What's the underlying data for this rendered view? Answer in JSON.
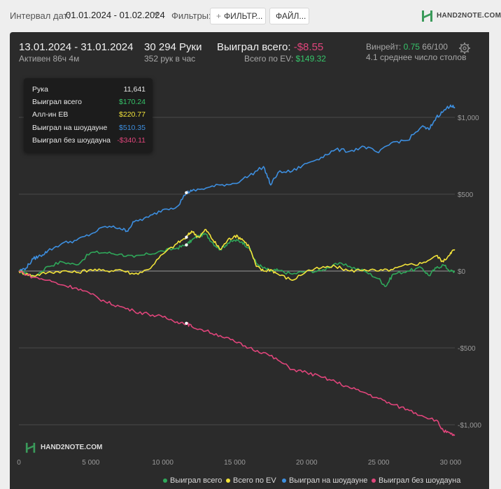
{
  "toolbar": {
    "interval_label": "Интервал дат:",
    "interval_value": "01.01.2024 - 01.02.2024",
    "filters_label": "Фильтры:",
    "filter_button": "ФИЛЬТР...",
    "file_button": "ФАЙЛ...",
    "logo": "HAND2NOTE.COM"
  },
  "summary": {
    "date_range": "13.01.2024 - 31.01.2024",
    "active": "Активен 86ч 4м",
    "hands": "30 294 Руки",
    "hands_per_hour": "352 рук в час",
    "won_label": "Выиграл всего:",
    "won_value": "-$8.55",
    "ev_label": "Всего по EV:",
    "ev_value": "$149.32",
    "winrate_label": "Винрейт:",
    "winrate_value": "0.75",
    "winrate_tail": "66/100",
    "tables": "4.1 среднее число столов"
  },
  "tooltip": {
    "rows": [
      {
        "label": "Рука",
        "value": "11,641",
        "color": "#e8e8e8"
      },
      {
        "label": "Выиграл всего",
        "value": "$170.24",
        "color": "#36c46a"
      },
      {
        "label": "Алл-ин ЕВ",
        "value": "$220.77",
        "color": "#f2e33a"
      },
      {
        "label": "Выиграл на шоудауне",
        "value": "$510.35",
        "color": "#3d8fe0"
      },
      {
        "label": "Выиграл без шоудауна",
        "value": "-$340.11",
        "color": "#e0457b"
      }
    ]
  },
  "watermark": "HAND2NOTE.COM",
  "chart_data": {
    "type": "line",
    "xlim": [
      0,
      30294
    ],
    "ylim": [
      -1100,
      1200
    ],
    "x_ticks": [
      0,
      5000,
      10000,
      15000,
      20000,
      25000,
      30000
    ],
    "x_tick_labels": [
      "0",
      "5 000",
      "10 000",
      "15 000",
      "20 000",
      "25 000",
      "30 000"
    ],
    "y_ticks": [
      1000,
      500,
      0,
      -500,
      -1000
    ],
    "y_tick_labels": [
      "$1,000",
      "$500",
      "$0",
      "-$500",
      "-$1,000"
    ],
    "grid": true,
    "legend_position": "bottom",
    "marker_x": 11641,
    "series": [
      {
        "name": "Выиграл всего",
        "color": "#2fa85a",
        "x": [
          0,
          500,
          1000,
          2000,
          3000,
          4000,
          5000,
          6000,
          7000,
          8000,
          9000,
          10000,
          11000,
          11641,
          12000,
          12500,
          13000,
          13500,
          14000,
          14500,
          15000,
          15500,
          16000,
          16500,
          17000,
          17500,
          18000,
          19000,
          20000,
          21000,
          22000,
          23000,
          24000,
          25000,
          25500,
          26000,
          27000,
          28000,
          28500,
          29000,
          29500,
          30000,
          30294
        ],
        "y": [
          0,
          -10,
          -40,
          30,
          60,
          40,
          120,
          120,
          110,
          90,
          110,
          130,
          150,
          170,
          200,
          230,
          240,
          180,
          140,
          180,
          200,
          190,
          150,
          50,
          20,
          0,
          5,
          -20,
          0,
          0,
          50,
          30,
          0,
          -50,
          -100,
          -20,
          0,
          20,
          -30,
          20,
          40,
          0,
          -5
        ]
      },
      {
        "name": "Всего по EV",
        "color": "#f2e33a",
        "x": [
          0,
          500,
          1000,
          2000,
          3000,
          4000,
          5000,
          6000,
          7000,
          8000,
          9000,
          10000,
          11000,
          11641,
          12000,
          12500,
          13000,
          13500,
          14000,
          14500,
          15000,
          15500,
          16000,
          16500,
          17000,
          17500,
          18000,
          19000,
          20000,
          21000,
          22000,
          23000,
          24000,
          25000,
          26000,
          27000,
          28000,
          29000,
          29500,
          30000,
          30294
        ],
        "y": [
          0,
          -20,
          -30,
          -10,
          0,
          -10,
          10,
          0,
          10,
          -20,
          10,
          110,
          180,
          220,
          260,
          220,
          270,
          200,
          140,
          200,
          230,
          210,
          160,
          30,
          0,
          10,
          -20,
          -60,
          0,
          20,
          30,
          0,
          10,
          0,
          10,
          40,
          50,
          100,
          60,
          120,
          140
        ]
      },
      {
        "name": "Выиграл на шоудауне",
        "color": "#3d8fe0",
        "x": [
          0,
          500,
          1000,
          1500,
          2000,
          3000,
          4000,
          5000,
          6000,
          7000,
          7500,
          8000,
          9000,
          10000,
          11000,
          11641,
          12000,
          13000,
          14000,
          15000,
          16000,
          17000,
          17500,
          18000,
          19000,
          20000,
          21000,
          22000,
          23000,
          24000,
          25000,
          26000,
          27000,
          28000,
          28500,
          29000,
          29500,
          30000,
          30294
        ],
        "y": [
          0,
          20,
          80,
          100,
          130,
          180,
          200,
          240,
          290,
          280,
          260,
          320,
          350,
          400,
          420,
          510,
          520,
          540,
          560,
          570,
          620,
          680,
          560,
          640,
          650,
          700,
          740,
          790,
          780,
          810,
          770,
          840,
          850,
          940,
          920,
          1000,
          1040,
          1080,
          1060
        ]
      },
      {
        "name": "Выиграл без шоудауна",
        "color": "#e0457b",
        "x": [
          0,
          1000,
          2000,
          3000,
          4000,
          5000,
          6000,
          7000,
          8000,
          9000,
          10000,
          11000,
          11641,
          12000,
          13000,
          14000,
          15000,
          16000,
          17000,
          18000,
          19000,
          20000,
          21000,
          22000,
          23000,
          24000,
          25000,
          26000,
          27000,
          28000,
          29000,
          29500,
          30000,
          30294
        ],
        "y": [
          0,
          -40,
          -60,
          -90,
          -110,
          -150,
          -200,
          -230,
          -260,
          -280,
          -300,
          -330,
          -340,
          -360,
          -390,
          -420,
          -460,
          -500,
          -530,
          -580,
          -640,
          -660,
          -690,
          -720,
          -760,
          -790,
          -830,
          -870,
          -900,
          -940,
          -970,
          -1040,
          -1060,
          -1070
        ]
      }
    ]
  }
}
